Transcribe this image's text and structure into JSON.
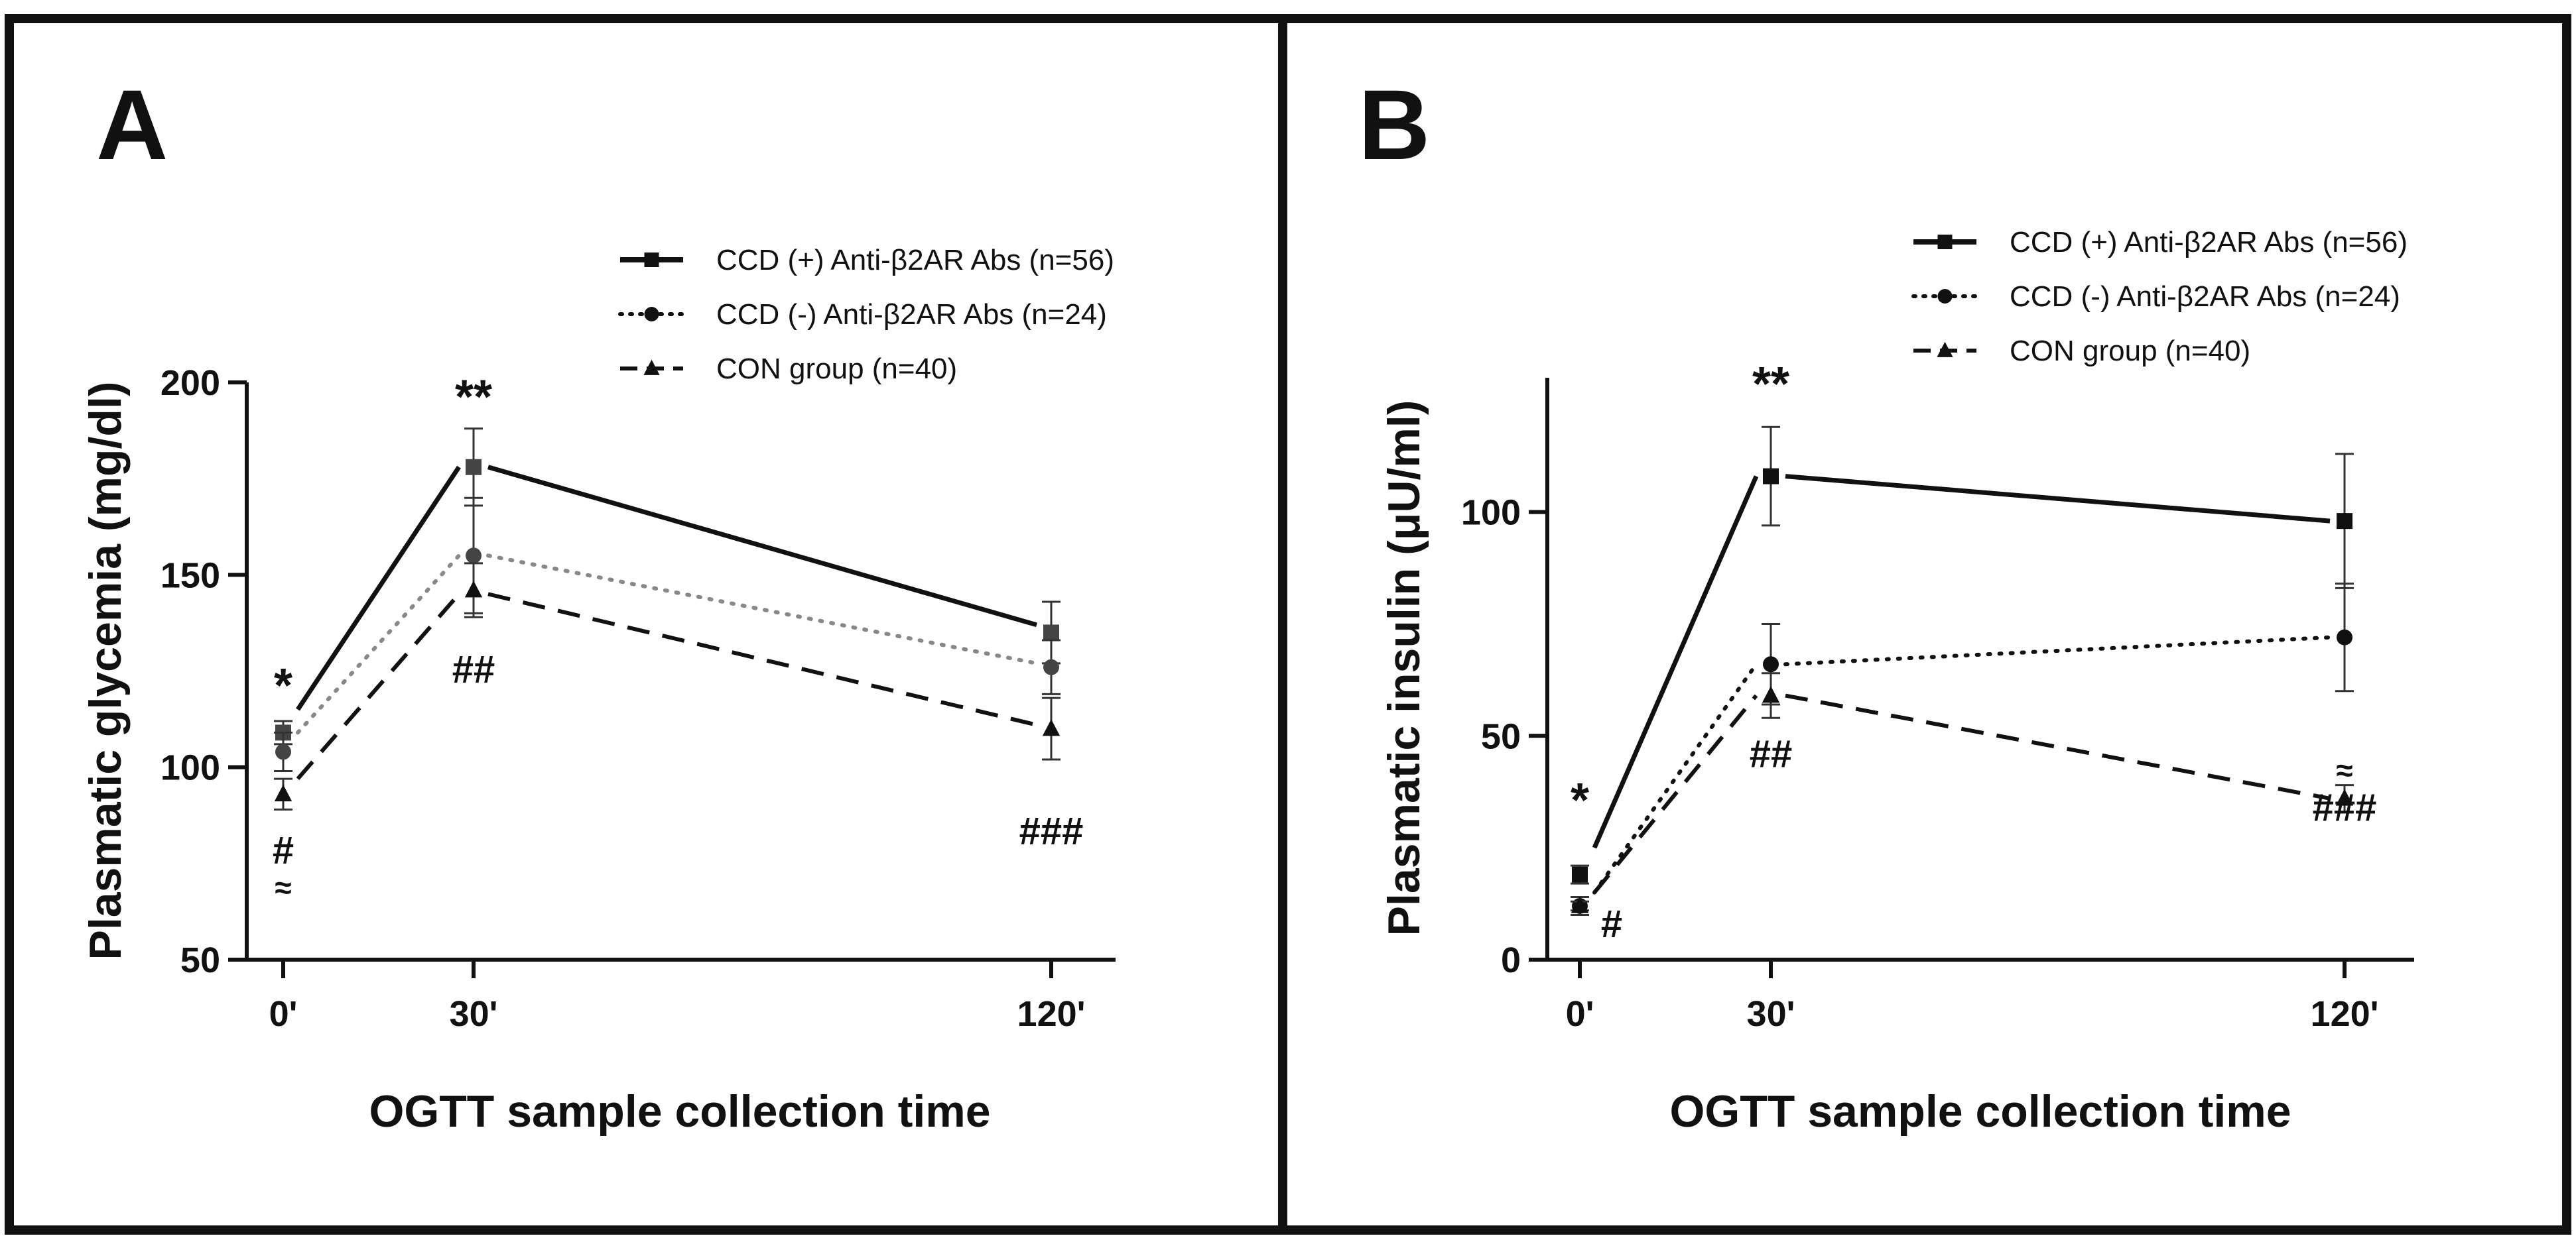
{
  "figure": {
    "legend": [
      {
        "label": "CCD (+) Anti-β2AR Abs (n=56)",
        "style": "solid",
        "marker": "square",
        "color": "#111111"
      },
      {
        "label": "CCD (-) Anti-β2AR Abs (n=24)",
        "style": "dotted",
        "marker": "circle",
        "color": "#111111"
      },
      {
        "label": "CON group  (n=40)",
        "style": "dashed",
        "marker": "triangle",
        "color": "#111111"
      }
    ]
  },
  "chart_data": [
    {
      "panel": "A",
      "type": "line",
      "xlabel": "OGTT sample collection time",
      "ylabel": "Plasmatic glycemia (mg/dl)",
      "categories": [
        "0'",
        "30'",
        "120'"
      ],
      "x": [
        0,
        30,
        120
      ],
      "ylim": [
        50,
        200
      ],
      "yticks": [
        50,
        100,
        150,
        200
      ],
      "series": [
        {
          "name": "CCD (+) Anti-β2AR Abs (n=56)",
          "values": [
            109,
            178,
            135
          ],
          "err": [
            3,
            10,
            8
          ],
          "line_values": [
            115,
            178,
            137
          ],
          "line_color": "#111111",
          "marker_color": "#444444"
        },
        {
          "name": "CCD (-) Anti-β2AR Abs (n=24)",
          "values": [
            104,
            155,
            126
          ],
          "err": [
            5,
            15,
            7
          ],
          "line_values": [
            109,
            155,
            127
          ],
          "line_color": "#888888",
          "marker_color": "#444444"
        },
        {
          "name": "CON group  (n=40)",
          "values": [
            93,
            146,
            110
          ],
          "err": [
            4,
            7,
            8
          ],
          "line_values": [
            97,
            145,
            111
          ],
          "line_color": "#111111",
          "marker_color": "#111111"
        }
      ],
      "annotations": [
        {
          "text": "*",
          "x": 0,
          "y": 117
        },
        {
          "text": "**",
          "x": 30,
          "y": 192
        },
        {
          "text": "##",
          "x": 30,
          "y": 122
        },
        {
          "text": "#",
          "x": 0,
          "y": 75
        },
        {
          "text": "≈",
          "x": 0,
          "y": 66
        },
        {
          "text": "###",
          "x": 120,
          "y": 80
        }
      ]
    },
    {
      "panel": "B",
      "type": "line",
      "xlabel": "OGTT sample collection time",
      "ylabel": "Plasmatic insulin (μU/ml)",
      "categories": [
        "0'",
        "30'",
        "120'"
      ],
      "x": [
        0,
        30,
        120
      ],
      "ylim": [
        0,
        130
      ],
      "yticks": [
        0,
        50,
        100
      ],
      "series": [
        {
          "name": "CCD (+) Anti-β2AR Abs (n=56)",
          "values": [
            19,
            108,
            98
          ],
          "err": [
            2,
            11,
            15
          ],
          "line_values": [
            25,
            108,
            98
          ],
          "line_color": "#111111",
          "marker_color": "#111111"
        },
        {
          "name": "CCD (-) Anti-β2AR Abs (n=24)",
          "values": [
            12,
            66,
            72
          ],
          "err": [
            2,
            9,
            12
          ],
          "line_values": [
            15,
            66,
            72
          ],
          "line_color": "#111111",
          "marker_color": "#111111"
        },
        {
          "name": "CON group  (n=40)",
          "values": [
            12,
            59,
            36
          ],
          "err": [
            1,
            5,
            3
          ],
          "line_values": [
            15,
            59,
            36
          ],
          "line_color": "#111111",
          "marker_color": "#111111"
        }
      ],
      "annotations": [
        {
          "text": "*",
          "x": 0,
          "y": 32
        },
        {
          "text": "**",
          "x": 30,
          "y": 125
        },
        {
          "text": "##",
          "x": 30,
          "y": 43
        },
        {
          "text": "#",
          "x": 5,
          "y": 5
        },
        {
          "text": "≈",
          "x": 120,
          "y": 40
        },
        {
          "text": "###",
          "x": 120,
          "y": 31
        }
      ]
    }
  ]
}
